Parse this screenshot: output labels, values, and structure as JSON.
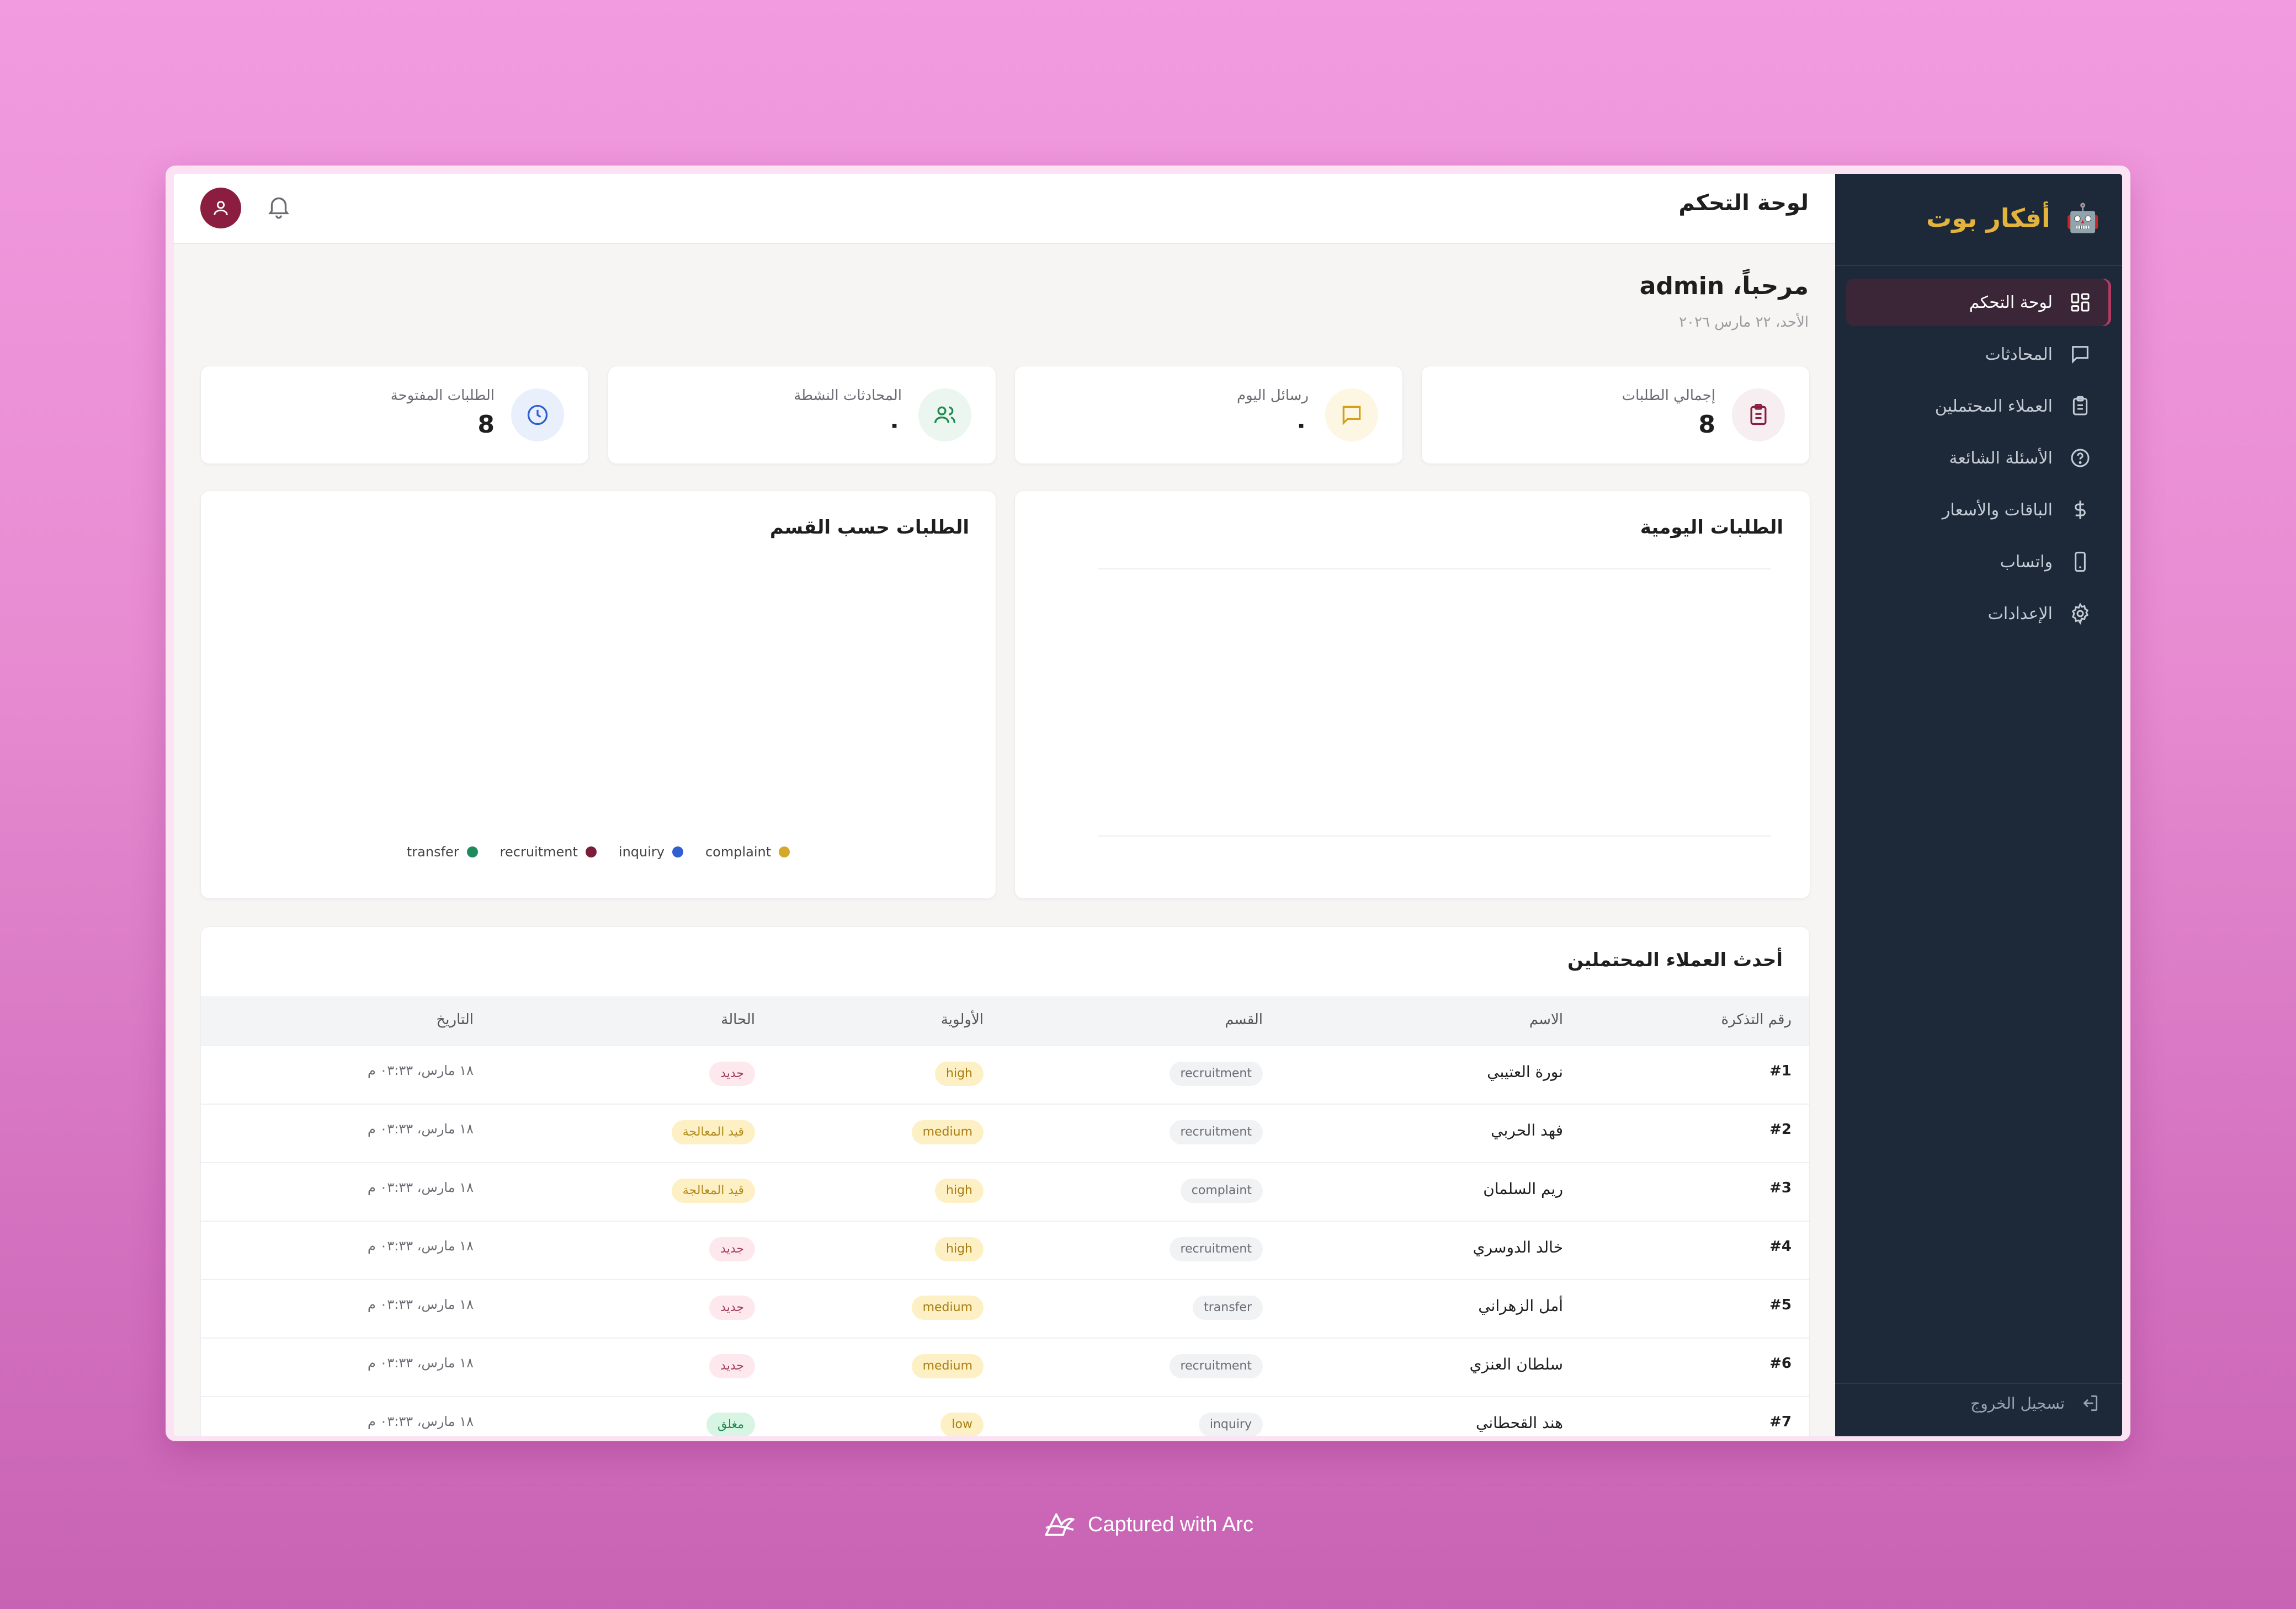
{
  "app": {
    "brand_icon": "🤖",
    "brand_name": "أفكار بوت",
    "accent": "#8b1e3f",
    "sidebar_bg": "#1d2939"
  },
  "sidebar": {
    "items": [
      {
        "label": "لوحة التحكم",
        "icon": "dashboard-icon",
        "active": true
      },
      {
        "label": "المحادثات",
        "icon": "chat-icon",
        "active": false
      },
      {
        "label": "العملاء المحتملين",
        "icon": "clipboard-icon",
        "active": false
      },
      {
        "label": "الأسئلة الشائعة",
        "icon": "help-circle-icon",
        "active": false
      },
      {
        "label": "الباقات والأسعار",
        "icon": "dollar-icon",
        "active": false
      },
      {
        "label": "واتساب",
        "icon": "phone-icon",
        "active": false
      },
      {
        "label": "الإعدادات",
        "icon": "gear-icon",
        "active": false
      }
    ],
    "logout_label": "تسجيل الخروج"
  },
  "header": {
    "title": "لوحة التحكم"
  },
  "welcome": {
    "greeting": "مرحباً، admin",
    "date": "الأحد، ٢٢ مارس ٢٠٢٦"
  },
  "stats": [
    {
      "label": "إجمالي الطلبات",
      "value": "8",
      "icon": "clipboard-list-icon",
      "icon_color": "#8b1e3f",
      "icon_bg": "#f6eef1"
    },
    {
      "label": "رسائل اليوم",
      "value": "٠",
      "icon": "message-icon",
      "icon_color": "#d4a017",
      "icon_bg": "#fdf6e3"
    },
    {
      "label": "المحادثات النشطة",
      "value": "٠",
      "icon": "users-icon",
      "icon_color": "#1f8a4c",
      "icon_bg": "#eaf6ef"
    },
    {
      "label": "الطلبات المفتوحة",
      "value": "8",
      "icon": "clock-icon",
      "icon_color": "#2f5fd0",
      "icon_bg": "#eaf0fb"
    }
  ],
  "charts": {
    "daily_title": "الطلبات اليومية",
    "dept_title": "الطلبات حسب القسم",
    "legend": [
      {
        "name": "complaint",
        "color": "#d4a82a"
      },
      {
        "name": "inquiry",
        "color": "#2f5fd0"
      },
      {
        "name": "recruitment",
        "color": "#7a1e3a"
      },
      {
        "name": "transfer",
        "color": "#1f8a5c"
      }
    ]
  },
  "leads": {
    "title": "أحدث العملاء المحتملين",
    "columns": [
      "رقم التذكرة",
      "الاسم",
      "القسم",
      "الأولوية",
      "الحالة",
      "التاريخ"
    ],
    "rows": [
      {
        "ticket": "#1",
        "name": "نورة العتيبي",
        "dept": "recruitment",
        "priority": "high",
        "status": "جديد",
        "status_type": "new",
        "date": "١٨ مارس، ٠٣:٣٣ م"
      },
      {
        "ticket": "#2",
        "name": "فهد الحربي",
        "dept": "recruitment",
        "priority": "medium",
        "status": "قيد المعالجة",
        "status_type": "proc",
        "date": "١٨ مارس، ٠٣:٣٣ م"
      },
      {
        "ticket": "#3",
        "name": "ريم السلمان",
        "dept": "complaint",
        "priority": "high",
        "status": "قيد المعالجة",
        "status_type": "proc",
        "date": "١٨ مارس، ٠٣:٣٣ م"
      },
      {
        "ticket": "#4",
        "name": "خالد الدوسري",
        "dept": "recruitment",
        "priority": "high",
        "status": "جديد",
        "status_type": "new",
        "date": "١٨ مارس، ٠٣:٣٣ م"
      },
      {
        "ticket": "#5",
        "name": "أمل الزهراني",
        "dept": "transfer",
        "priority": "medium",
        "status": "جديد",
        "status_type": "new",
        "date": "١٨ مارس، ٠٣:٣٣ م"
      },
      {
        "ticket": "#6",
        "name": "سلطان العنزي",
        "dept": "recruitment",
        "priority": "medium",
        "status": "جديد",
        "status_type": "new",
        "date": "١٨ مارس، ٠٣:٣٣ م"
      },
      {
        "ticket": "#7",
        "name": "هند القحطاني",
        "dept": "inquiry",
        "priority": "low",
        "status": "مغلق",
        "status_type": "closed",
        "date": "١٨ مارس، ٠٣:٣٣ م"
      }
    ]
  },
  "footer": {
    "caption": "Captured with Arc"
  }
}
